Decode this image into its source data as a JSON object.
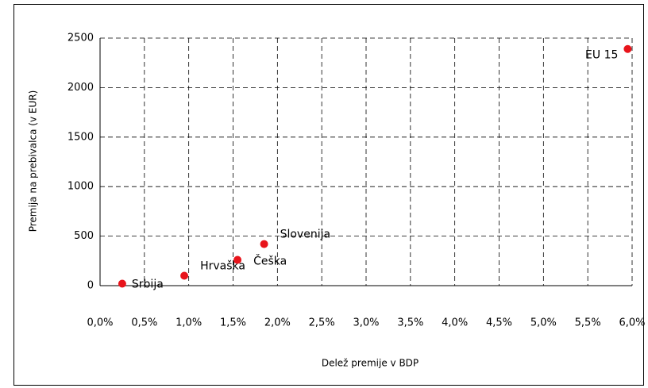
{
  "chart_data": {
    "type": "scatter",
    "x_label": "Delež premije v BDP",
    "y_label": "Premija na prebivalca (v EUR)",
    "labels": [
      "Srbija",
      "Hrvaška",
      "Češka",
      "Slovenija",
      "EU 15"
    ],
    "x": [
      0.25,
      0.95,
      1.55,
      1.85,
      5.95
    ],
    "values": [
      20,
      100,
      260,
      420,
      2390
    ],
    "color": "#e8141b",
    "xlim": [
      0,
      6
    ],
    "xticks": [
      {
        "value": 0,
        "label": "0,0%"
      },
      {
        "value": 0.5,
        "label": "0,5%"
      },
      {
        "value": 1,
        "label": "1,0%"
      },
      {
        "value": 1.5,
        "label": "1,5%"
      },
      {
        "value": 2,
        "label": "2,0%"
      },
      {
        "value": 2.5,
        "label": "2,5%"
      },
      {
        "value": 3,
        "label": "3,0%"
      },
      {
        "value": 3.5,
        "label": "3,5%"
      },
      {
        "value": 4,
        "label": "4,0%"
      },
      {
        "value": 4.5,
        "label": "4,5%"
      },
      {
        "value": 5,
        "label": "5,0%"
      },
      {
        "value": 5.5,
        "label": "5,5%"
      },
      {
        "value": 6,
        "label": "6,0%"
      }
    ],
    "ylim": [
      0,
      2500
    ],
    "yticks": [
      0,
      500,
      1000,
      1500,
      2000,
      2500
    ],
    "grid": true
  }
}
